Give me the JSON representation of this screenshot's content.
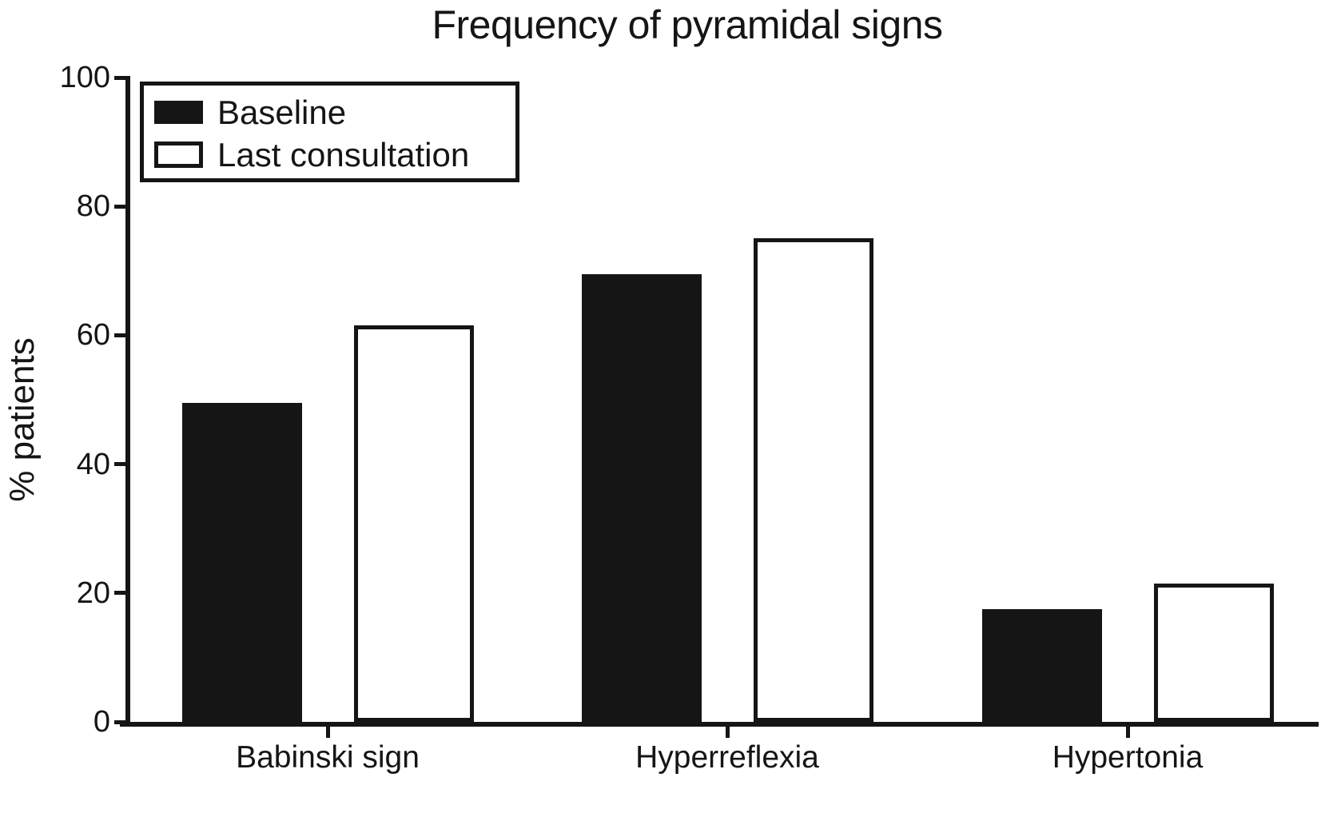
{
  "colors": {
    "ink": "#151515",
    "background": "#ffffff",
    "baseline_bar_fill": "#151515",
    "last_consultation_bar_fill": "#ffffff"
  },
  "chart_data": {
    "type": "bar",
    "title": "Frequency of pyramidal signs",
    "categories": [
      "Babinski sign",
      "Hyperreflexia",
      "Hypertonia"
    ],
    "series": [
      {
        "name": "Baseline",
        "style": "solid-black",
        "values": [
          49.5,
          69.5,
          17.5
        ]
      },
      {
        "name": "Last consultation",
        "style": "white-outlined",
        "values": [
          61.5,
          75,
          21.5
        ]
      }
    ],
    "xlabel": "",
    "ylabel": "% patients",
    "ylim": [
      0,
      100
    ],
    "yticks": [
      0,
      20,
      40,
      60,
      80,
      100
    ],
    "grid": false,
    "legend_position": "upper-left"
  }
}
